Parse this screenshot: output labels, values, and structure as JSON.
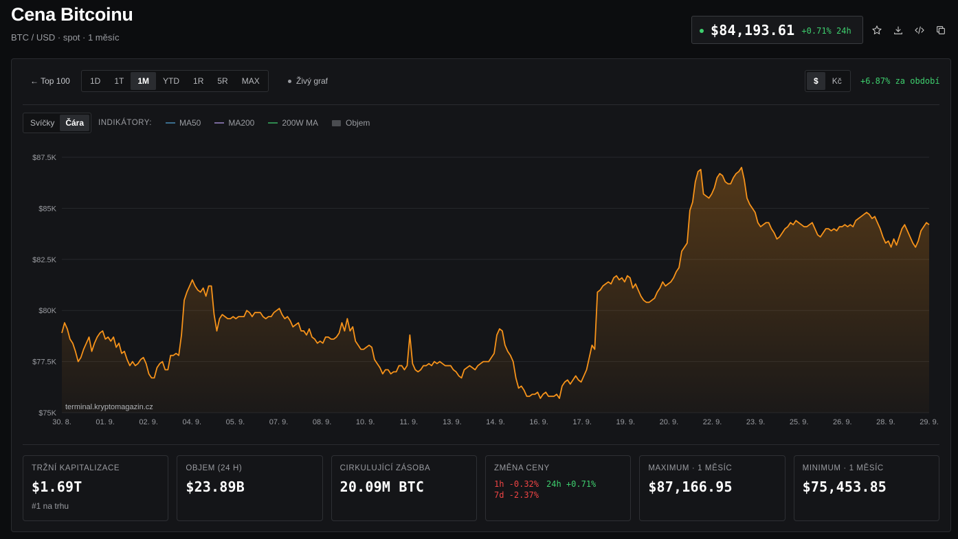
{
  "header": {
    "title": "Cena Bitcoinu",
    "subtitle": "BTC / USD · spot · 1 měsíc",
    "price": "$84,193.61",
    "price_change": "+0.71% 24h"
  },
  "toolbar": {
    "back_label": "← Top 100",
    "ranges": [
      "1D",
      "1T",
      "1M",
      "YTD",
      "1R",
      "5R",
      "MAX"
    ],
    "active_range": "1M",
    "live_label": "Živý graf",
    "currencies": [
      "$",
      "Kč"
    ],
    "active_currency": "$",
    "period_change": "+6.87% za období"
  },
  "indicators": {
    "types": [
      "Svíčky",
      "Čára"
    ],
    "active_type": "Čára",
    "label": "INDIKÁTORY:",
    "items": [
      {
        "name": "MA50",
        "color": "#3b6e8f"
      },
      {
        "name": "MA200",
        "color": "#7a6a9e"
      },
      {
        "name": "200W MA",
        "color": "#2f8a4f"
      },
      {
        "name": "Objem",
        "color": "#4a4c50"
      }
    ]
  },
  "chart_data": {
    "type": "area",
    "title": "",
    "xlabel": "",
    "ylabel": "",
    "ylim": [
      75000,
      87500
    ],
    "yticks": [
      75000,
      77500,
      80000,
      82500,
      85000,
      87500
    ],
    "ytick_labels": [
      "$75K",
      "$77.5K",
      "$80K",
      "$82.5K",
      "$85K",
      "$87.5K"
    ],
    "xtick_labels": [
      "30. 8.",
      "01. 9.",
      "02. 9.",
      "04. 9.",
      "05. 9.",
      "07. 9.",
      "08. 9.",
      "10. 9.",
      "11. 9.",
      "13. 9.",
      "14. 9.",
      "16. 9.",
      "17. 9.",
      "19. 9.",
      "20. 9.",
      "22. 9.",
      "23. 9.",
      "25. 9.",
      "26. 9.",
      "28. 9.",
      "29. 9."
    ],
    "line_color": "#f7931a",
    "watermark": "terminal.kryptomagazin.cz",
    "grid": true,
    "series": [
      {
        "values": [
          78900,
          79400,
          79100,
          78600,
          78400,
          78000,
          77500,
          77700,
          78100,
          78400,
          78700,
          78000,
          78400,
          78700,
          78900,
          79000,
          78600,
          78700,
          78500,
          78700,
          78200,
          78400,
          77900,
          78000,
          77600,
          77300,
          77500,
          77300,
          77400,
          77600,
          77700,
          77400,
          76900,
          76700,
          76700,
          77200,
          77400,
          77500,
          77100,
          77100,
          77800,
          77800,
          77900,
          77800,
          78800,
          80500,
          80900,
          81200,
          81500,
          81200,
          81000,
          80900,
          81100,
          80700,
          81200,
          81200,
          79800,
          79000,
          79600,
          79800,
          79700,
          79600,
          79600,
          79700,
          79600,
          79700,
          79700,
          79700,
          80000,
          79900,
          79700,
          79900,
          79900,
          79900,
          79700,
          79600,
          79700,
          79700,
          79900,
          80000,
          80100,
          79800,
          79600,
          79700,
          79500,
          79200,
          79300,
          79400,
          79000,
          79000,
          78800,
          79100,
          78700,
          78600,
          78400,
          78500,
          78400,
          78700,
          78700,
          78600,
          78600,
          78700,
          78900,
          79400,
          79000,
          79600,
          79000,
          79200,
          78500,
          78300,
          78100,
          78100,
          78200,
          78300,
          78200,
          77600,
          77400,
          77200,
          76900,
          77100,
          77100,
          76900,
          77000,
          77000,
          77300,
          77300,
          77100,
          77300,
          78800,
          77400,
          77100,
          77000,
          77100,
          77300,
          77300,
          77400,
          77300,
          77500,
          77400,
          77500,
          77400,
          77300,
          77300,
          77300,
          77100,
          77000,
          76800,
          76700,
          77100,
          77200,
          77300,
          77200,
          77100,
          77300,
          77400,
          77500,
          77500,
          77500,
          77700,
          77900,
          78800,
          79100,
          79000,
          78300,
          78000,
          77800,
          77500,
          76700,
          76200,
          76300,
          76100,
          75800,
          75800,
          75900,
          75900,
          76000,
          75700,
          75900,
          76000,
          75800,
          75800,
          75800,
          75900,
          75700,
          76300,
          76500,
          76600,
          76400,
          76600,
          76800,
          76600,
          76500,
          76800,
          77100,
          77700,
          78300,
          78100,
          80900,
          81000,
          81200,
          81300,
          81400,
          81300,
          81600,
          81700,
          81500,
          81600,
          81400,
          81700,
          81600,
          81100,
          81300,
          81000,
          80700,
          80500,
          80400,
          80400,
          80500,
          80600,
          80900,
          81100,
          81400,
          81200,
          81300,
          81400,
          81600,
          81900,
          82100,
          82900,
          83100,
          83300,
          84900,
          85300,
          86300,
          86800,
          86900,
          85700,
          85600,
          85500,
          85700,
          86000,
          86500,
          86700,
          86600,
          86300,
          86200,
          86200,
          86500,
          86700,
          86800,
          87000,
          86400,
          85500,
          85200,
          85000,
          84800,
          84300,
          84100,
          84200,
          84300,
          84300,
          84000,
          83800,
          83500,
          83600,
          83800,
          84000,
          84100,
          84300,
          84200,
          84400,
          84300,
          84200,
          84100,
          84100,
          84200,
          84300,
          84000,
          83700,
          83600,
          83800,
          84000,
          84000,
          83900,
          84000,
          83900,
          84100,
          84100,
          84200,
          84100,
          84200,
          84100,
          84400,
          84500,
          84600,
          84700,
          84800,
          84700,
          84500,
          84600,
          84300,
          84000,
          83600,
          83300,
          83400,
          83100,
          83500,
          83200,
          83600,
          84000,
          84200,
          83900,
          83600,
          83300,
          83100,
          83400,
          83900,
          84100,
          84300,
          84200
        ]
      }
    ]
  },
  "stats": [
    {
      "label": "TRŽNÍ KAPITALIZACE",
      "value": "$1.69T",
      "sub": "#1 na trhu"
    },
    {
      "label": "OBJEM (24 H)",
      "value": "$23.89B"
    },
    {
      "label": "CIRKULUJÍCÍ ZÁSOBA",
      "value": "20.09M BTC"
    },
    {
      "label": "ZMĚNA CENY",
      "h1": "1h -0.32%",
      "h24": "24h +0.71%",
      "d7": "7d -2.37%"
    },
    {
      "label": "MAXIMUM · 1 MĚSÍC",
      "value": "$87,166.95"
    },
    {
      "label": "MINIMUM · 1 MĚSÍC",
      "value": "$75,453.85"
    }
  ]
}
